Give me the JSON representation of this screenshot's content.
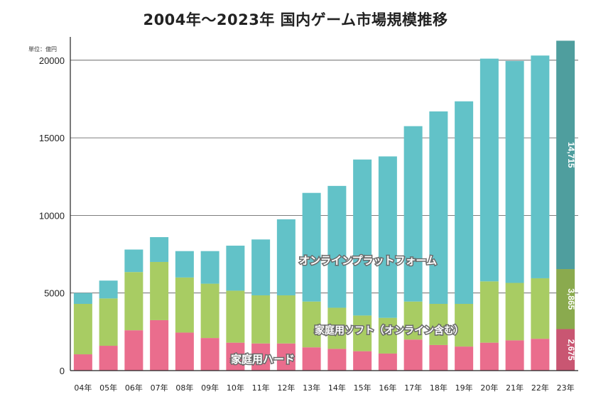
{
  "chart_data": {
    "type": "bar",
    "stacked": true,
    "title": "2004年〜2023年 国内ゲーム市場規模推移",
    "unit": "単位：億円",
    "ylim": [
      0,
      21500
    ],
    "yticks": [
      0,
      5000,
      10000,
      15000,
      20000
    ],
    "grid": true,
    "categories": [
      "04年",
      "05年",
      "06年",
      "07年",
      "08年",
      "09年",
      "10年",
      "11年",
      "12年",
      "13年",
      "14年",
      "15年",
      "16年",
      "17年",
      "18年",
      "19年",
      "20年",
      "21年",
      "22年",
      "23年"
    ],
    "series": [
      {
        "name": "家庭用ハード",
        "color": "#ea6d8d",
        "values": [
          1050,
          1600,
          2600,
          3250,
          2450,
          2100,
          1800,
          1750,
          1750,
          1500,
          1400,
          1250,
          1100,
          2000,
          1650,
          1550,
          1800,
          1950,
          2050,
          2675
        ]
      },
      {
        "name": "家庭用ソフト（オンライン含む）",
        "color": "#a8cc63",
        "values": [
          3250,
          3050,
          3750,
          3750,
          3550,
          3500,
          3350,
          3100,
          3100,
          2950,
          2650,
          2300,
          2300,
          2450,
          2650,
          2750,
          3950,
          3700,
          3900,
          3865
        ]
      },
      {
        "name": "オンラインプラットフォーム",
        "color": "#62c2c8",
        "values": [
          700,
          1150,
          1450,
          1600,
          1700,
          2100,
          2900,
          3600,
          4900,
          7000,
          7850,
          10050,
          10400,
          11300,
          12400,
          13050,
          14350,
          14300,
          14350,
          14715
        ]
      }
    ],
    "highlight": {
      "category": "23年",
      "colors": [
        "#c95672",
        "#8aaa4e",
        "#4f9e9e"
      ]
    },
    "value_labels": [
      "2,675",
      "3,865",
      "14,715"
    ]
  }
}
